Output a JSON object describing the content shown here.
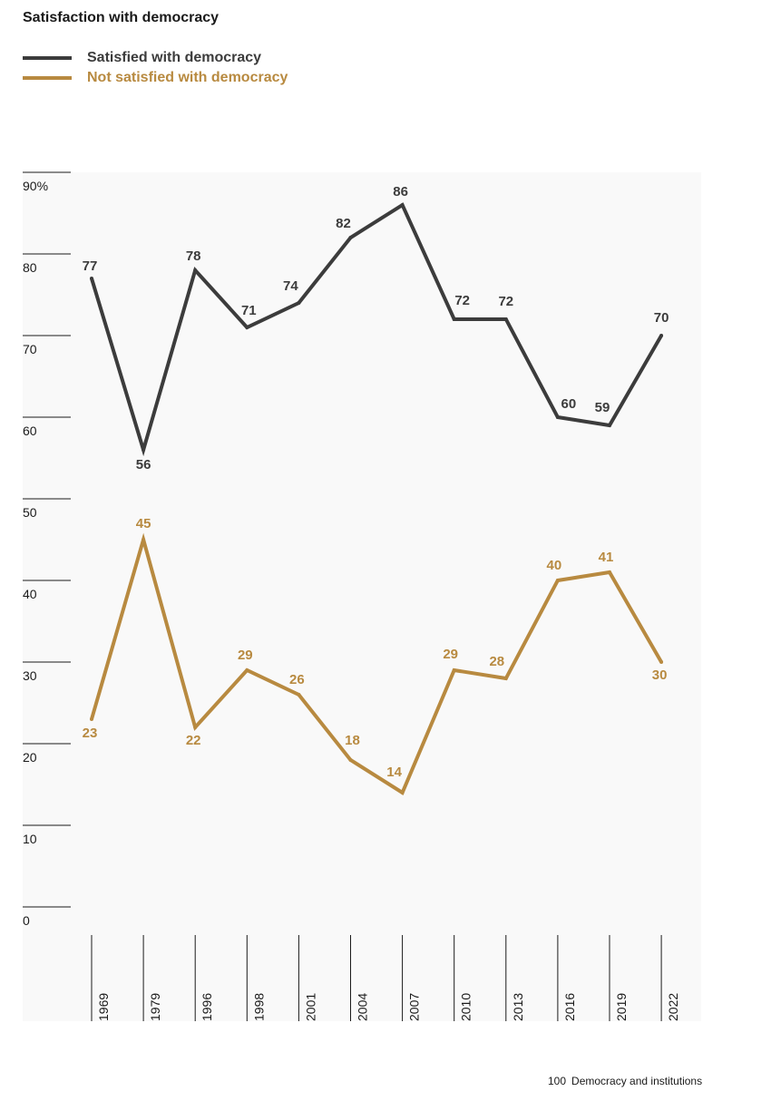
{
  "chart_data": {
    "type": "line",
    "title": "Satisfaction with democracy",
    "x": [
      "1969",
      "1979",
      "1996",
      "1998",
      "2001",
      "2004",
      "2007",
      "2010",
      "2013",
      "2016",
      "2019",
      "2022"
    ],
    "series": [
      {
        "name": "Satisfied with democracy",
        "color": "#3c3c3c",
        "values": [
          77,
          56,
          78,
          71,
          74,
          82,
          86,
          72,
          72,
          60,
          59,
          70
        ]
      },
      {
        "name": "Not satisfied with democracy",
        "color": "#b88a40",
        "values": [
          23,
          45,
          22,
          29,
          26,
          18,
          14,
          29,
          28,
          40,
          41,
          30
        ]
      }
    ],
    "y_ticks": [
      "0",
      "10",
      "20",
      "30",
      "40",
      "50",
      "60",
      "70",
      "80",
      "90%"
    ],
    "ylim": [
      0,
      90
    ],
    "xlabel": "",
    "ylabel": "",
    "legend_position": "top-left",
    "grid": false,
    "background": "#f9f9f9"
  },
  "footer": {
    "page_number": "100",
    "section": "Democracy and institutions"
  }
}
